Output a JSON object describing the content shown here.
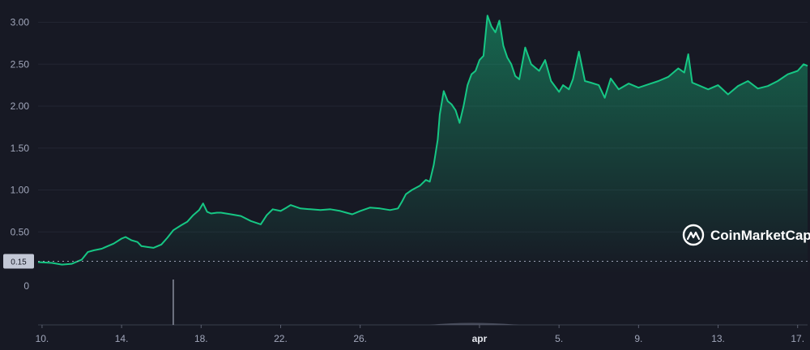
{
  "chart_data": {
    "type": "area",
    "y_ticks": [
      "3.00",
      "2.50",
      "2.00",
      "1.50",
      "1.00",
      "0.50"
    ],
    "y_tick_values": [
      3.0,
      2.5,
      2.0,
      1.5,
      1.0,
      0.5
    ],
    "ylim": [
      0,
      3.15
    ],
    "x_ticks": [
      {
        "label": "10.",
        "day": 10
      },
      {
        "label": "14.",
        "day": 14
      },
      {
        "label": "18.",
        "day": 18
      },
      {
        "label": "22.",
        "day": 22
      },
      {
        "label": "26.",
        "day": 26
      },
      {
        "label": "apr",
        "day": 32,
        "major": true
      },
      {
        "label": "5.",
        "day": 36
      },
      {
        "label": "9.",
        "day": 40
      },
      {
        "label": "13.",
        "day": 44
      },
      {
        "label": "17.",
        "day": 48
      }
    ],
    "xlim": [
      9.8,
      48.5
    ],
    "series": [
      {
        "x": [
          9.8,
          10.5,
          11.0,
          11.5,
          12.0,
          12.3,
          12.6,
          13.0,
          13.3,
          13.6,
          14.0,
          14.2,
          14.5,
          14.8,
          15.0,
          15.3,
          15.6,
          16.0,
          16.3,
          16.6,
          17.0,
          17.3,
          17.6,
          17.9,
          18.1,
          18.3,
          18.5,
          18.8,
          19.0,
          19.5,
          20.0,
          20.5,
          21.0,
          21.3,
          21.6,
          22.0,
          22.3,
          22.5,
          23.0,
          23.5,
          24.0,
          24.5,
          25.0,
          25.3,
          25.6,
          26.0,
          26.5,
          27.0,
          27.5,
          27.9,
          28.1,
          28.3,
          28.6,
          29.0,
          29.3,
          29.5,
          29.7,
          29.9,
          30.0,
          30.2,
          30.4,
          30.6,
          30.8,
          31.0,
          31.2,
          31.4,
          31.6,
          31.8,
          32.0,
          32.2,
          32.4,
          32.6,
          32.8,
          33.0,
          33.2,
          33.4,
          33.6,
          33.8,
          34.0,
          34.3,
          34.6,
          35.0,
          35.3,
          35.6,
          36.0,
          36.2,
          36.5,
          36.7,
          37.0,
          37.3,
          37.6,
          38.0,
          38.3,
          38.6,
          39.0,
          39.5,
          40.0,
          40.5,
          41.0,
          41.5,
          42.0,
          42.3,
          42.5,
          42.7,
          43.0,
          43.5,
          44.0,
          44.5,
          45.0,
          45.5,
          46.0,
          46.5,
          47.0,
          47.5,
          48.0,
          48.3,
          48.5
        ],
        "y": [
          0.14,
          0.13,
          0.11,
          0.12,
          0.17,
          0.26,
          0.28,
          0.3,
          0.33,
          0.36,
          0.42,
          0.44,
          0.4,
          0.38,
          0.33,
          0.32,
          0.31,
          0.35,
          0.43,
          0.52,
          0.58,
          0.62,
          0.7,
          0.76,
          0.84,
          0.74,
          0.72,
          0.73,
          0.73,
          0.71,
          0.69,
          0.63,
          0.59,
          0.7,
          0.77,
          0.75,
          0.79,
          0.82,
          0.78,
          0.77,
          0.76,
          0.77,
          0.75,
          0.73,
          0.71,
          0.75,
          0.79,
          0.78,
          0.76,
          0.78,
          0.86,
          0.95,
          1.0,
          1.05,
          1.12,
          1.1,
          1.3,
          1.6,
          1.9,
          2.18,
          2.06,
          2.02,
          1.95,
          1.8,
          2.0,
          2.25,
          2.38,
          2.42,
          2.55,
          2.6,
          3.08,
          2.95,
          2.88,
          3.02,
          2.72,
          2.58,
          2.5,
          2.36,
          2.32,
          2.7,
          2.5,
          2.42,
          2.55,
          2.3,
          2.17,
          2.25,
          2.2,
          2.32,
          2.65,
          2.3,
          2.28,
          2.25,
          2.1,
          2.33,
          2.2,
          2.27,
          2.22,
          2.26,
          2.3,
          2.35,
          2.45,
          2.4,
          2.62,
          2.28,
          2.25,
          2.2,
          2.25,
          2.14,
          2.24,
          2.3,
          2.21,
          2.24,
          2.3,
          2.38,
          2.42,
          2.5,
          2.48
        ]
      }
    ],
    "current_price_label": "0.15",
    "current_price_value": 0.15,
    "volume_zero_label": "0",
    "volume_spike_day": 16.6,
    "line_color": "#16c784",
    "area_fill_color": "#16c784",
    "background_color": "#171924"
  },
  "watermark": {
    "text": "CoinMarketCap",
    "icon": "coinmarketcap-logo-icon"
  }
}
